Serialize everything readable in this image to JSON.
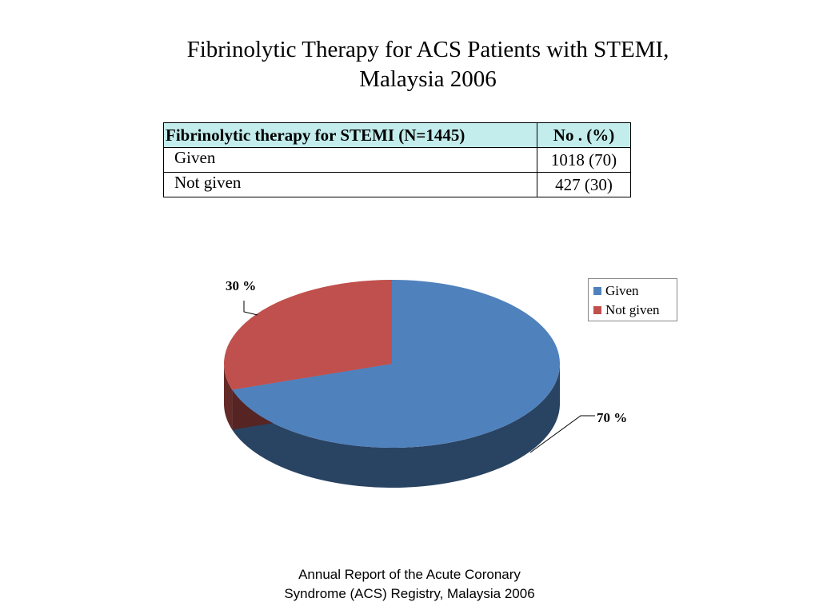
{
  "title": {
    "line1": "Fibrinolytic Therapy for ACS Patients with STEMI,",
    "line2": "Malaysia 2006"
  },
  "table": {
    "headers": [
      "Fibrinolytic therapy for STEMI (N=1445)",
      "No . (%)"
    ],
    "rows": [
      [
        "Given",
        "1018 (70)"
      ],
      [
        "Not given",
        "427 (30)"
      ]
    ]
  },
  "chart_data": {
    "type": "pie",
    "categories": [
      "Given",
      "Not given"
    ],
    "values": [
      70,
      30
    ],
    "data_labels": [
      "70 %",
      "30 %"
    ],
    "colors": [
      "#4f81bd",
      "#c0504d"
    ],
    "legend": {
      "entries": [
        "Given",
        "Not given"
      ],
      "position": "right"
    },
    "style": "3d"
  },
  "footer": {
    "line1": "Annual Report of the Acute Coronary",
    "line2": "Syndrome (ACS) Registry, Malaysia 2006"
  }
}
